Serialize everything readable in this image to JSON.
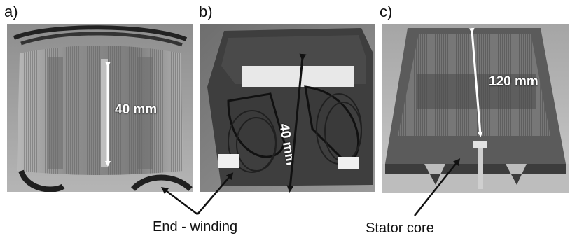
{
  "panels": {
    "a": {
      "label": "a)",
      "dimension": "40 mm"
    },
    "b": {
      "label": "b)",
      "dimension": "40 mm"
    },
    "c": {
      "label": "c)",
      "dimension": "120 mm"
    }
  },
  "annotations": {
    "end_winding": "End - winding",
    "stator_core": "Stator core"
  }
}
